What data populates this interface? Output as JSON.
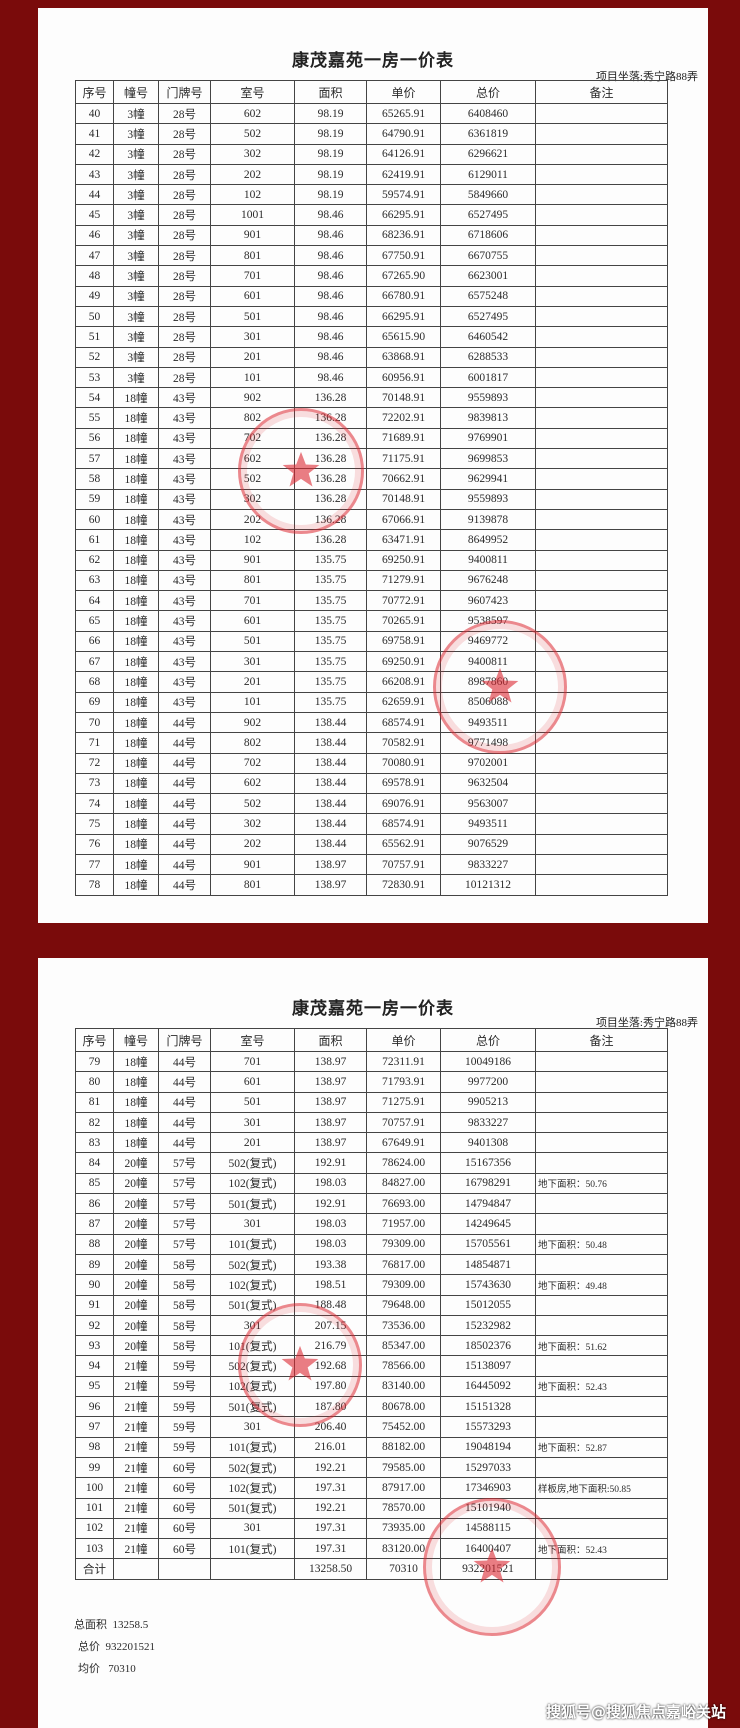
{
  "page1": {
    "title": "康茂嘉苑一房一价表",
    "location": "项目坐落:秀宁路88弄",
    "headers": [
      "序号",
      "幢号",
      "门牌号",
      "室号",
      "面积",
      "单价",
      "总价",
      "备注"
    ],
    "rows": [
      [
        "40",
        "3幢",
        "28号",
        "602",
        "98.19",
        "65265.91",
        "6408460",
        ""
      ],
      [
        "41",
        "3幢",
        "28号",
        "502",
        "98.19",
        "64790.91",
        "6361819",
        ""
      ],
      [
        "42",
        "3幢",
        "28号",
        "302",
        "98.19",
        "64126.91",
        "6296621",
        ""
      ],
      [
        "43",
        "3幢",
        "28号",
        "202",
        "98.19",
        "62419.91",
        "6129011",
        ""
      ],
      [
        "44",
        "3幢",
        "28号",
        "102",
        "98.19",
        "59574.91",
        "5849660",
        ""
      ],
      [
        "45",
        "3幢",
        "28号",
        "1001",
        "98.46",
        "66295.91",
        "6527495",
        ""
      ],
      [
        "46",
        "3幢",
        "28号",
        "901",
        "98.46",
        "68236.91",
        "6718606",
        ""
      ],
      [
        "47",
        "3幢",
        "28号",
        "801",
        "98.46",
        "67750.91",
        "6670755",
        ""
      ],
      [
        "48",
        "3幢",
        "28号",
        "701",
        "98.46",
        "67265.90",
        "6623001",
        ""
      ],
      [
        "49",
        "3幢",
        "28号",
        "601",
        "98.46",
        "66780.91",
        "6575248",
        ""
      ],
      [
        "50",
        "3幢",
        "28号",
        "501",
        "98.46",
        "66295.91",
        "6527495",
        ""
      ],
      [
        "51",
        "3幢",
        "28号",
        "301",
        "98.46",
        "65615.90",
        "6460542",
        ""
      ],
      [
        "52",
        "3幢",
        "28号",
        "201",
        "98.46",
        "63868.91",
        "6288533",
        ""
      ],
      [
        "53",
        "3幢",
        "28号",
        "101",
        "98.46",
        "60956.91",
        "6001817",
        ""
      ],
      [
        "54",
        "18幢",
        "43号",
        "902",
        "136.28",
        "70148.91",
        "9559893",
        ""
      ],
      [
        "55",
        "18幢",
        "43号",
        "802",
        "136.28",
        "72202.91",
        "9839813",
        ""
      ],
      [
        "56",
        "18幢",
        "43号",
        "702",
        "136.28",
        "71689.91",
        "9769901",
        ""
      ],
      [
        "57",
        "18幢",
        "43号",
        "602",
        "136.28",
        "71175.91",
        "9699853",
        ""
      ],
      [
        "58",
        "18幢",
        "43号",
        "502",
        "136.28",
        "70662.91",
        "9629941",
        ""
      ],
      [
        "59",
        "18幢",
        "43号",
        "302",
        "136.28",
        "70148.91",
        "9559893",
        ""
      ],
      [
        "60",
        "18幢",
        "43号",
        "202",
        "136.28",
        "67066.91",
        "9139878",
        ""
      ],
      [
        "61",
        "18幢",
        "43号",
        "102",
        "136.28",
        "63471.91",
        "8649952",
        ""
      ],
      [
        "62",
        "18幢",
        "43号",
        "901",
        "135.75",
        "69250.91",
        "9400811",
        ""
      ],
      [
        "63",
        "18幢",
        "43号",
        "801",
        "135.75",
        "71279.91",
        "9676248",
        ""
      ],
      [
        "64",
        "18幢",
        "43号",
        "701",
        "135.75",
        "70772.91",
        "9607423",
        ""
      ],
      [
        "65",
        "18幢",
        "43号",
        "601",
        "135.75",
        "70265.91",
        "9538597",
        ""
      ],
      [
        "66",
        "18幢",
        "43号",
        "501",
        "135.75",
        "69758.91",
        "9469772",
        ""
      ],
      [
        "67",
        "18幢",
        "43号",
        "301",
        "135.75",
        "69250.91",
        "9400811",
        ""
      ],
      [
        "68",
        "18幢",
        "43号",
        "201",
        "135.75",
        "66208.91",
        "8987860",
        ""
      ],
      [
        "69",
        "18幢",
        "43号",
        "101",
        "135.75",
        "62659.91",
        "8506088",
        ""
      ],
      [
        "70",
        "18幢",
        "44号",
        "902",
        "138.44",
        "68574.91",
        "9493511",
        ""
      ],
      [
        "71",
        "18幢",
        "44号",
        "802",
        "138.44",
        "70582.91",
        "9771498",
        ""
      ],
      [
        "72",
        "18幢",
        "44号",
        "702",
        "138.44",
        "70080.91",
        "9702001",
        ""
      ],
      [
        "73",
        "18幢",
        "44号",
        "602",
        "138.44",
        "69578.91",
        "9632504",
        ""
      ],
      [
        "74",
        "18幢",
        "44号",
        "502",
        "138.44",
        "69076.91",
        "9563007",
        ""
      ],
      [
        "75",
        "18幢",
        "44号",
        "302",
        "138.44",
        "68574.91",
        "9493511",
        ""
      ],
      [
        "76",
        "18幢",
        "44号",
        "202",
        "138.44",
        "65562.91",
        "9076529",
        ""
      ],
      [
        "77",
        "18幢",
        "44号",
        "901",
        "138.97",
        "70757.91",
        "9833227",
        ""
      ],
      [
        "78",
        "18幢",
        "44号",
        "801",
        "138.97",
        "72830.91",
        "10121312",
        ""
      ]
    ]
  },
  "page2": {
    "title": "康茂嘉苑一房一价表",
    "location": "项目坐落:秀宁路88弄",
    "headers": [
      "序号",
      "幢号",
      "门牌号",
      "室号",
      "面积",
      "单价",
      "总价",
      "备注"
    ],
    "rows": [
      [
        "79",
        "18幢",
        "44号",
        "701",
        "138.97",
        "72311.91",
        "10049186",
        ""
      ],
      [
        "80",
        "18幢",
        "44号",
        "601",
        "138.97",
        "71793.91",
        "9977200",
        ""
      ],
      [
        "81",
        "18幢",
        "44号",
        "501",
        "138.97",
        "71275.91",
        "9905213",
        ""
      ],
      [
        "82",
        "18幢",
        "44号",
        "301",
        "138.97",
        "70757.91",
        "9833227",
        ""
      ],
      [
        "83",
        "18幢",
        "44号",
        "201",
        "138.97",
        "67649.91",
        "9401308",
        ""
      ],
      [
        "84",
        "20幢",
        "57号",
        "502(复式)",
        "192.91",
        "78624.00",
        "15167356",
        ""
      ],
      [
        "85",
        "20幢",
        "57号",
        "102(复式)",
        "198.03",
        "84827.00",
        "16798291",
        "地下面积：50.76"
      ],
      [
        "86",
        "20幢",
        "57号",
        "501(复式)",
        "192.91",
        "76693.00",
        "14794847",
        ""
      ],
      [
        "87",
        "20幢",
        "57号",
        "301",
        "198.03",
        "71957.00",
        "14249645",
        ""
      ],
      [
        "88",
        "20幢",
        "57号",
        "101(复式)",
        "198.03",
        "79309.00",
        "15705561",
        "地下面积：50.48"
      ],
      [
        "89",
        "20幢",
        "58号",
        "502(复式)",
        "193.38",
        "76817.00",
        "14854871",
        ""
      ],
      [
        "90",
        "20幢",
        "58号",
        "102(复式)",
        "198.51",
        "79309.00",
        "15743630",
        "地下面积：49.48"
      ],
      [
        "91",
        "20幢",
        "58号",
        "501(复式)",
        "188.48",
        "79648.00",
        "15012055",
        ""
      ],
      [
        "92",
        "20幢",
        "58号",
        "301",
        "207.15",
        "73536.00",
        "15232982",
        ""
      ],
      [
        "93",
        "20幢",
        "58号",
        "101(复式)",
        "216.79",
        "85347.00",
        "18502376",
        "地下面积：51.62"
      ],
      [
        "94",
        "21幢",
        "59号",
        "502(复式)",
        "192.68",
        "78566.00",
        "15138097",
        ""
      ],
      [
        "95",
        "21幢",
        "59号",
        "102(复式)",
        "197.80",
        "83140.00",
        "16445092",
        "地下面积：52.43"
      ],
      [
        "96",
        "21幢",
        "59号",
        "501(复式)",
        "187.80",
        "80678.00",
        "15151328",
        ""
      ],
      [
        "97",
        "21幢",
        "59号",
        "301",
        "206.40",
        "75452.00",
        "15573293",
        ""
      ],
      [
        "98",
        "21幢",
        "59号",
        "101(复式)",
        "216.01",
        "88182.00",
        "19048194",
        "地下面积：52.87"
      ],
      [
        "99",
        "21幢",
        "60号",
        "502(复式)",
        "192.21",
        "79585.00",
        "15297033",
        ""
      ],
      [
        "100",
        "21幢",
        "60号",
        "102(复式)",
        "197.31",
        "87917.00",
        "17346903",
        "样板房,地下面积:50.85"
      ],
      [
        "101",
        "21幢",
        "60号",
        "501(复式)",
        "192.21",
        "78570.00",
        "15101940",
        ""
      ],
      [
        "102",
        "21幢",
        "60号",
        "301",
        "197.31",
        "73935.00",
        "14588115",
        ""
      ],
      [
        "103",
        "21幢",
        "60号",
        "101(复式)",
        "197.31",
        "83120.00",
        "16400407",
        "地下面积：52.43"
      ]
    ],
    "total_row": [
      "合计",
      "",
      "",
      "",
      "13258.50",
      "70310",
      "932201521",
      ""
    ],
    "summary": [
      {
        "label": "总面积",
        "value": "13258.5"
      },
      {
        "label": "总价",
        "value": "932201521"
      },
      {
        "label": "均价",
        "value": "70310"
      }
    ]
  },
  "watermark": "搜狐号@搜狐焦点嘉峪关站",
  "colors": {
    "background": "#7a0b0b",
    "stamp": "#dc2832",
    "paper": "#fdfdfd"
  }
}
